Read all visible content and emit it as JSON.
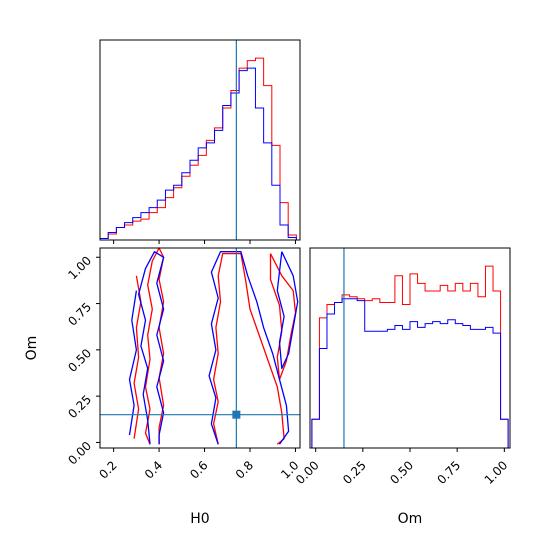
{
  "chart_data": {
    "type": "corner",
    "parameters": [
      "H0",
      "Om"
    ],
    "truth": {
      "H0": 0.74,
      "Om": 0.15
    },
    "series_colors": {
      "red": "#ff0000",
      "blue": "#0000ff",
      "truth": "#1f77b4"
    },
    "panels": [
      {
        "id": "hist-H0",
        "type": "histogram",
        "parameter": "H0",
        "xlim": [
          0.14,
          1.02
        ],
        "bin_edges": [
          0.14,
          0.176,
          0.212,
          0.248,
          0.284,
          0.32,
          0.356,
          0.392,
          0.428,
          0.464,
          0.5,
          0.536,
          0.572,
          0.608,
          0.644,
          0.68,
          0.716,
          0.752,
          0.788,
          0.824,
          0.86,
          0.896,
          0.932,
          0.968,
          1.004
        ],
        "series": [
          {
            "color": "#ff0000",
            "counts": [
              0.3,
              1.2,
              2.5,
              3.0,
              3.8,
              4.2,
              5.5,
              6.5,
              8.5,
              10.5,
              12.8,
              15.0,
              17.0,
              20.0,
              22.5,
              26.5,
              30.0,
              34.5,
              36.0,
              36.5,
              31.0,
              19.0,
              7.5,
              1.0
            ]
          },
          {
            "color": "#0000ff",
            "counts": [
              0.3,
              1.5,
              2.5,
              3.5,
              4.5,
              5.5,
              6.5,
              8.0,
              10.0,
              11.0,
              13.5,
              16.0,
              18.5,
              19.5,
              22.0,
              27.0,
              29.5,
              34.0,
              34.5,
              26.5,
              19.5,
              11.0,
              3.0,
              0.5
            ]
          }
        ]
      },
      {
        "id": "contour-H0-Om",
        "type": "contour",
        "x_parameter": "H0",
        "y_parameter": "Om",
        "xlim": [
          0.14,
          1.02
        ],
        "ylim": [
          -0.03,
          1.05
        ],
        "xticks": [
          "0.2",
          "0.4",
          "0.6",
          "0.8",
          "1.0"
        ],
        "yticks": [
          "0.00",
          "0.25",
          "0.50",
          "0.75",
          "1.00"
        ],
        "xlabel": "H0",
        "ylabel": "Om",
        "series": [
          {
            "color": "#ff0000",
            "contours": [
              [
                [
                  0.36,
                  -0.01
                ],
                [
                  0.34,
                  0.05
                ],
                [
                  0.36,
                  0.18
                ],
                [
                  0.34,
                  0.3
                ],
                [
                  0.36,
                  0.45
                ],
                [
                  0.35,
                  0.58
                ],
                [
                  0.37,
                  0.72
                ],
                [
                  0.35,
                  0.85
                ],
                [
                  0.37,
                  0.98
                ],
                [
                  0.4,
                  1.05
                ],
                [
                  0.42,
                  1.0
                ],
                [
                  0.4,
                  0.88
                ],
                [
                  0.42,
                  0.76
                ],
                [
                  0.4,
                  0.62
                ],
                [
                  0.42,
                  0.48
                ],
                [
                  0.4,
                  0.35
                ],
                [
                  0.42,
                  0.2
                ],
                [
                  0.4,
                  0.08
                ],
                [
                  0.4,
                  -0.01
                ]
              ],
              [
                [
                  0.66,
                  -0.01
                ],
                [
                  0.64,
                  0.1
                ],
                [
                  0.66,
                  0.22
                ],
                [
                  0.64,
                  0.34
                ],
                [
                  0.66,
                  0.48
                ],
                [
                  0.65,
                  0.62
                ],
                [
                  0.67,
                  0.76
                ],
                [
                  0.66,
                  0.9
                ],
                [
                  0.68,
                  1.02
                ],
                [
                  0.76,
                  1.02
                ],
                [
                  0.78,
                  0.88
                ],
                [
                  0.8,
                  0.72
                ],
                [
                  0.84,
                  0.58
                ],
                [
                  0.88,
                  0.44
                ],
                [
                  0.92,
                  0.3
                ],
                [
                  0.94,
                  0.16
                ],
                [
                  0.95,
                  0.02
                ],
                [
                  0.92,
                  -0.01
                ]
              ],
              [
                [
                  0.89,
                  1.02
                ],
                [
                  0.94,
                  0.9
                ],
                [
                  0.99,
                  0.82
                ],
                [
                  1.0,
                  0.7
                ],
                [
                  0.98,
                  0.58
                ],
                [
                  0.96,
                  0.44
                ],
                [
                  0.93,
                  0.34
                ],
                [
                  0.92,
                  0.46
                ],
                [
                  0.94,
                  0.6
                ],
                [
                  0.93,
                  0.74
                ],
                [
                  0.89,
                  0.88
                ],
                [
                  0.89,
                  1.02
                ]
              ],
              [
                [
                  0.29,
                  0.02
                ],
                [
                  0.31,
                  0.18
                ],
                [
                  0.29,
                  0.32
                ],
                [
                  0.31,
                  0.46
                ],
                [
                  0.3,
                  0.62
                ],
                [
                  0.32,
                  0.76
                ],
                [
                  0.3,
                  0.9
                ]
              ]
            ]
          },
          {
            "color": "#0000ff",
            "contours": [
              [
                [
                  0.36,
                  -0.01
                ],
                [
                  0.35,
                  0.12
                ],
                [
                  0.33,
                  0.26
                ],
                [
                  0.35,
                  0.4
                ],
                [
                  0.32,
                  0.52
                ],
                [
                  0.34,
                  0.66
                ],
                [
                  0.31,
                  0.8
                ],
                [
                  0.34,
                  0.94
                ],
                [
                  0.38,
                  1.03
                ],
                [
                  0.42,
                  1.0
                ],
                [
                  0.39,
                  0.86
                ],
                [
                  0.42,
                  0.72
                ],
                [
                  0.39,
                  0.58
                ],
                [
                  0.42,
                  0.44
                ],
                [
                  0.39,
                  0.3
                ],
                [
                  0.42,
                  0.16
                ],
                [
                  0.4,
                  0.04
                ],
                [
                  0.4,
                  -0.01
                ]
              ],
              [
                [
                  0.66,
                  -0.01
                ],
                [
                  0.63,
                  0.1
                ],
                [
                  0.65,
                  0.24
                ],
                [
                  0.62,
                  0.36
                ],
                [
                  0.65,
                  0.5
                ],
                [
                  0.63,
                  0.64
                ],
                [
                  0.66,
                  0.78
                ],
                [
                  0.63,
                  0.92
                ],
                [
                  0.67,
                  1.03
                ],
                [
                  0.76,
                  1.03
                ],
                [
                  0.79,
                  0.9
                ],
                [
                  0.83,
                  0.76
                ],
                [
                  0.86,
                  0.62
                ],
                [
                  0.9,
                  0.48
                ],
                [
                  0.93,
                  0.34
                ],
                [
                  0.96,
                  0.2
                ],
                [
                  0.97,
                  0.06
                ],
                [
                  0.93,
                  -0.01
                ]
              ],
              [
                [
                  0.94,
                  1.03
                ],
                [
                  0.99,
                  0.9
                ],
                [
                  1.01,
                  0.76
                ],
                [
                  0.99,
                  0.62
                ],
                [
                  0.97,
                  0.48
                ],
                [
                  0.94,
                  0.4
                ],
                [
                  0.93,
                  0.54
                ],
                [
                  0.95,
                  0.68
                ],
                [
                  0.92,
                  0.82
                ],
                [
                  0.94,
                  1.03
                ]
              ],
              [
                [
                  0.27,
                  0.04
                ],
                [
                  0.29,
                  0.2
                ],
                [
                  0.27,
                  0.34
                ],
                [
                  0.3,
                  0.5
                ],
                [
                  0.28,
                  0.66
                ],
                [
                  0.3,
                  0.82
                ]
              ]
            ]
          }
        ]
      },
      {
        "id": "hist-Om",
        "type": "histogram",
        "parameter": "Om",
        "xlim": [
          -0.03,
          1.03
        ],
        "xticks": [
          "0.00",
          "0.25",
          "0.50",
          "0.75",
          "1.00"
        ],
        "xlabel": "Om",
        "bin_edges": [
          -0.02,
          0.02,
          0.06,
          0.1,
          0.14,
          0.18,
          0.22,
          0.26,
          0.3,
          0.34,
          0.38,
          0.42,
          0.46,
          0.5,
          0.54,
          0.58,
          0.62,
          0.66,
          0.7,
          0.74,
          0.78,
          0.82,
          0.86,
          0.9,
          0.94,
          0.98,
          1.02
        ],
        "series": [
          {
            "color": "#ff0000",
            "counts": [
              1.5,
              6.8,
              7.5,
              7.6,
              8.0,
              7.9,
              7.8,
              7.7,
              7.8,
              7.6,
              7.6,
              9.0,
              7.5,
              9.1,
              8.6,
              8.2,
              8.2,
              8.5,
              8.2,
              8.6,
              8.2,
              8.6,
              7.9,
              9.5,
              8.2,
              1.5
            ]
          },
          {
            "color": "#0000ff",
            "counts": [
              1.5,
              5.2,
              7.0,
              7.6,
              7.8,
              7.8,
              7.7,
              6.1,
              6.1,
              6.1,
              6.2,
              6.4,
              6.2,
              6.6,
              6.3,
              6.5,
              6.6,
              6.5,
              6.7,
              6.5,
              6.4,
              6.2,
              6.2,
              6.3,
              6.0,
              1.5
            ]
          }
        ]
      }
    ]
  }
}
